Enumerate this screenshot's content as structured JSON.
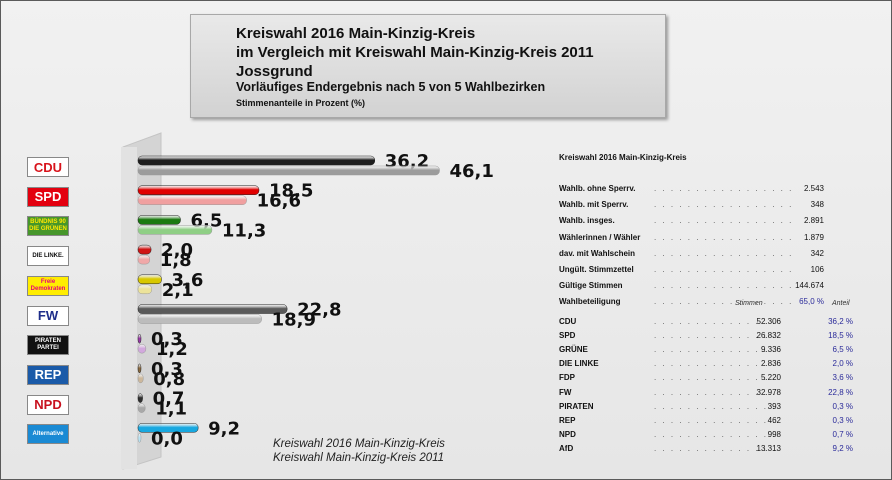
{
  "header": {
    "line1": "Kreiswahl 2016 Main-Kinzig-Kreis",
    "line2": "im Vergleich mit Kreiswahl Main-Kinzig-Kreis 2011",
    "line3": "Jossgrund",
    "line4": "Vorläufiges Endergebnis nach 5 von 5 Wahlbezirken",
    "line5": "Stimmenanteile in Prozent (%)"
  },
  "chart_data": {
    "type": "bar",
    "orientation": "horizontal",
    "categories": [
      "CDU",
      "SPD",
      "GRÜNE",
      "DIE LINKE",
      "FDP",
      "FW",
      "PIRATEN",
      "REP",
      "NPD",
      "AfD"
    ],
    "series": [
      {
        "name": "Kreiswahl 2016 Main-Kinzig-Kreis",
        "values": [
          36.2,
          18.5,
          6.5,
          2.0,
          3.6,
          22.8,
          0.3,
          0.3,
          0.7,
          9.2
        ],
        "labels": [
          "36,2",
          "18,5",
          "6,5",
          "2,0",
          "3,6",
          "22,8",
          "0,3",
          "0,3",
          "0,7",
          "9,2"
        ]
      },
      {
        "name": "Kreiswahl Main-Kinzig-Kreis 2011",
        "values": [
          46.1,
          16.6,
          11.3,
          1.8,
          2.1,
          18.9,
          1.2,
          0.8,
          1.1,
          0.0
        ],
        "labels": [
          "46,1",
          "16,6",
          "11,3",
          "1,8",
          "2,1",
          "18,9",
          "1,2",
          "0,8",
          "1,1",
          "0,0"
        ]
      }
    ],
    "colors_2016": [
      "#1e1e1e",
      "#e00000",
      "#1a7a10",
      "#d01515",
      "#d8c800",
      "#5a5a5a",
      "#9a3aa8",
      "#8a6a40",
      "#2e2e2e",
      "#18a8e0"
    ],
    "colors_2011": [
      "#9c9c9c",
      "#f0a0a0",
      "#8fcf85",
      "#f0a8a8",
      "#ece39a",
      "#bcbcbc",
      "#d2a8dd",
      "#cdb89c",
      "#a8a8a8",
      "#b8e2f2"
    ],
    "legend_placement": "bottom",
    "grid": false
  },
  "logos": [
    {
      "name": "cdu-logo",
      "text": "CDU",
      "bg": "#ffffff",
      "fg": "#d8131b"
    },
    {
      "name": "spd-logo",
      "text": "SPD",
      "bg": "#e3000f",
      "fg": "#ffffff"
    },
    {
      "name": "gruene-logo",
      "text": "BÜNDNIS 90 DIE GRÜNEN",
      "bg": "#46962b",
      "fg": "#ffe800"
    },
    {
      "name": "linke-logo",
      "text": "DIE LINKE.",
      "bg": "#ffffff",
      "fg": "#111111"
    },
    {
      "name": "fdp-logo",
      "text": "Freie Demokraten",
      "bg": "#ffed00",
      "fg": "#e5007d"
    },
    {
      "name": "fw-logo",
      "text": "FW",
      "bg": "#ffffff",
      "fg": "#1e2d8a"
    },
    {
      "name": "piraten-logo",
      "text": "PIRATEN PARTEI",
      "bg": "#111111",
      "fg": "#ffffff"
    },
    {
      "name": "rep-logo",
      "text": "REP",
      "bg": "#1a5aa8",
      "fg": "#ffffff"
    },
    {
      "name": "npd-logo",
      "text": "NPD",
      "bg": "#ffffff",
      "fg": "#c8101e"
    },
    {
      "name": "afd-logo",
      "text": "Alternative",
      "bg": "#1a8ad4",
      "fg": "#ffffff"
    }
  ],
  "stats": {
    "title": "Kreiswahl 2016 Main-Kinzig-Kreis",
    "rows": [
      {
        "label": "Wahlb. ohne Sperrv.",
        "value": "2.543"
      },
      {
        "label": "Wahlb. mit Sperrv.",
        "value": "348"
      },
      {
        "label": "Wahlb. insges.",
        "value": "2.891"
      },
      {
        "label": "Wählerinnen / Wähler",
        "value": "1.879"
      },
      {
        "label": "dav. mit Wahlschein",
        "value": "342"
      },
      {
        "label": "Ungült. Stimmzettel",
        "value": "106"
      },
      {
        "label": "Gültige Stimmen",
        "value": "144.674"
      },
      {
        "label": "Wahlbeteiligung",
        "value": "65,0 %"
      }
    ],
    "col_stimmen": "Stimmen",
    "col_anteil": "Anteil",
    "parties": [
      {
        "label": "CDU",
        "votes": "52.306",
        "pct": "36,2 %"
      },
      {
        "label": "SPD",
        "votes": "26.832",
        "pct": "18,5 %"
      },
      {
        "label": "GRÜNE",
        "votes": "9.336",
        "pct": "6,5 %"
      },
      {
        "label": "DIE LINKE",
        "votes": "2.836",
        "pct": "2,0 %"
      },
      {
        "label": "FDP",
        "votes": "5.220",
        "pct": "3,6 %"
      },
      {
        "label": "FW",
        "votes": "32.978",
        "pct": "22,8 %"
      },
      {
        "label": "PIRATEN",
        "votes": "393",
        "pct": "0,3 %"
      },
      {
        "label": "REP",
        "votes": "462",
        "pct": "0,3 %"
      },
      {
        "label": "NPD",
        "votes": "998",
        "pct": "0,7 %"
      },
      {
        "label": "AfD",
        "votes": "13.313",
        "pct": "9,2 %"
      }
    ]
  }
}
